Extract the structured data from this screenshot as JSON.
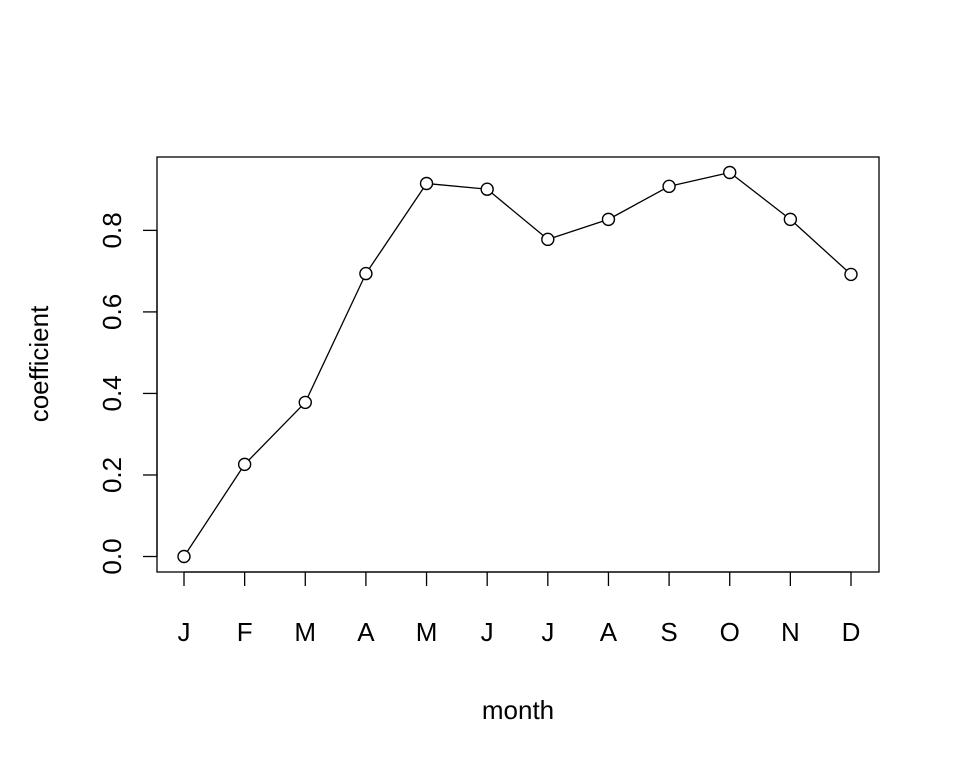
{
  "chart_data": {
    "type": "line",
    "title": "",
    "xlabel": "month",
    "ylabel": "coefficient",
    "categories": [
      "J",
      "F",
      "M",
      "A",
      "M",
      "J",
      "J",
      "A",
      "S",
      "O",
      "N",
      "D"
    ],
    "values": [
      0.0,
      0.226,
      0.378,
      0.694,
      0.915,
      0.901,
      0.778,
      0.827,
      0.908,
      0.942,
      0.827,
      0.692
    ],
    "ylim": [
      -0.038,
      0.98
    ],
    "yticks": [
      "0.0",
      "0.2",
      "0.4",
      "0.6",
      "0.8"
    ],
    "marker": "open-circle",
    "grid": false,
    "color": "#000000"
  }
}
